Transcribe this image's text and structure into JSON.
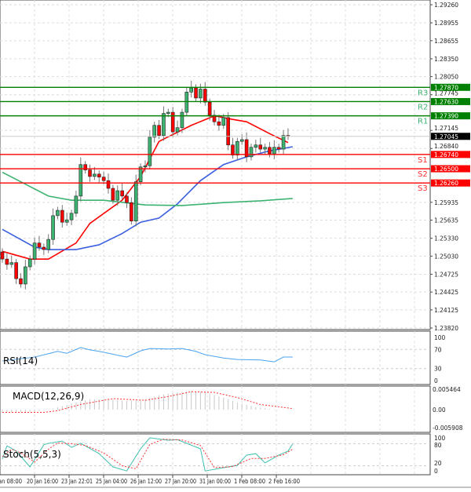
{
  "chart_data": {
    "type": "candlestick",
    "price_axis": {
      "range": [
        1.2382,
        1.2926
      ],
      "ticks": [
        "1.29260",
        "1.28955",
        "1.28655",
        "1.28350",
        "1.28050",
        "1.27745",
        "1.27145",
        "1.26840",
        "1.25935",
        "1.25635",
        "1.25330",
        "1.25030",
        "1.24725",
        "1.24425",
        "1.24125",
        "1.23820"
      ]
    },
    "x_ticks": [
      {
        "label": "Jan 08:00",
        "i": 0
      },
      {
        "label": "20 Jan 16:00",
        "i": 6
      },
      {
        "label": "23 Jan 22:01",
        "i": 13
      },
      {
        "label": "25 Jan 04:00",
        "i": 21
      },
      {
        "label": "26 Jan 12:00",
        "i": 29
      },
      {
        "label": "27 Jan 20:00",
        "i": 37
      },
      {
        "label": "31 Jan 00:00",
        "i": 46
      },
      {
        "label": "1 Feb 08:00",
        "i": 54
      },
      {
        "label": "2 Feb 16:00",
        "i": 61
      }
    ],
    "close": [
      1.2498,
      1.2489,
      1.2492,
      1.2465,
      1.2456,
      1.2485,
      1.2498,
      1.2525,
      1.2518,
      1.2514,
      1.2531,
      1.2571,
      1.258,
      1.256,
      1.2564,
      1.2575,
      1.2604,
      1.2657,
      1.2648,
      1.2637,
      1.2641,
      1.2636,
      1.263,
      1.2617,
      1.2597,
      1.2613,
      1.2604,
      1.2593,
      1.2562,
      1.2628,
      1.2653,
      1.2655,
      1.2703,
      1.2723,
      1.2706,
      1.2743,
      1.2745,
      1.2712,
      1.2719,
      1.2745,
      1.2779,
      1.2786,
      1.2769,
      1.2784,
      1.2762,
      1.274,
      1.2729,
      1.2723,
      1.2736,
      1.269,
      1.2673,
      1.2696,
      1.2699,
      1.267,
      1.2686,
      1.269,
      1.2683,
      1.2686,
      1.2675,
      1.2686,
      1.2683,
      1.2706,
      1.27045
    ],
    "first_open": 1.251,
    "current_price": "1.27045",
    "moving_averages": [
      {
        "color": "#ff0000",
        "points": [
          [
            0,
            1.2511
          ],
          [
            6,
            1.2498
          ],
          [
            10,
            1.2498
          ],
          [
            16,
            1.2525
          ],
          [
            19,
            1.2558
          ],
          [
            26,
            1.2597
          ],
          [
            30,
            1.2637
          ],
          [
            34,
            1.2696
          ],
          [
            41,
            1.2723
          ],
          [
            46,
            1.2739
          ],
          [
            50,
            1.2733
          ],
          [
            53,
            1.2729
          ],
          [
            58,
            1.2709
          ],
          [
            62,
            1.2694
          ]
        ]
      },
      {
        "color": "#3a5fe0",
        "points": [
          [
            0,
            1.2548
          ],
          [
            7,
            1.2518
          ],
          [
            10,
            1.2514
          ],
          [
            16,
            1.2514
          ],
          [
            21,
            1.2522
          ],
          [
            26,
            1.2541
          ],
          [
            30,
            1.256
          ],
          [
            34,
            1.2567
          ],
          [
            38,
            1.2591
          ],
          [
            43,
            1.263
          ],
          [
            48,
            1.2657
          ],
          [
            53,
            1.267
          ],
          [
            58,
            1.268
          ],
          [
            63,
            1.2687
          ]
        ]
      },
      {
        "color": "#3cb371",
        "points": [
          [
            0,
            1.2644
          ],
          [
            5,
            1.2624
          ],
          [
            10,
            1.2604
          ],
          [
            15,
            1.2597
          ],
          [
            22,
            1.2597
          ],
          [
            31,
            1.2589
          ],
          [
            39,
            1.2588
          ],
          [
            48,
            1.2593
          ],
          [
            56,
            1.2596
          ],
          [
            63,
            1.26
          ]
        ]
      }
    ],
    "levels": [
      {
        "name": "R3",
        "value": "1.27870",
        "type": "resistance"
      },
      {
        "name": "R2",
        "value": "1.27630",
        "type": "resistance"
      },
      {
        "name": "R1",
        "value": "1.27390",
        "type": "resistance"
      },
      {
        "name": "S1",
        "value": "1.26740",
        "type": "support"
      },
      {
        "name": "S2",
        "value": "1.26500",
        "type": "support"
      },
      {
        "name": "S3",
        "value": "1.26260",
        "type": "support"
      }
    ],
    "colors": {
      "bull": "#3cb371",
      "bear": "#ff0000",
      "resistance": "#008000",
      "support": "#ff0000",
      "rsi": "#4aa3f0",
      "stoch_main": "#40c0b0",
      "stoch_signal": "#ff3030",
      "macd_hist": "#c8c8c8",
      "macd_signal": "#ff3030"
    },
    "rsi": {
      "label": "RSI(14)",
      "ticks": [
        "100",
        "70",
        "30",
        "0"
      ],
      "points": [
        [
          0,
          46
        ],
        [
          7,
          54
        ],
        [
          10,
          61
        ],
        [
          12,
          66
        ],
        [
          14,
          62
        ],
        [
          17,
          74
        ],
        [
          19,
          69
        ],
        [
          21,
          66
        ],
        [
          27,
          54
        ],
        [
          30,
          67
        ],
        [
          32,
          72
        ],
        [
          36,
          71
        ],
        [
          39,
          72
        ],
        [
          42,
          66
        ],
        [
          44,
          59
        ],
        [
          48,
          52
        ],
        [
          51,
          49
        ],
        [
          56,
          48
        ],
        [
          59,
          44
        ],
        [
          61,
          54
        ],
        [
          63,
          54
        ]
      ]
    },
    "macd": {
      "label": "MACD(12,26,9)",
      "ticks": [
        "0.005464",
        "0.00",
        "-0.005908"
      ],
      "range": [
        -0.005908,
        0.005464
      ],
      "hist_points": [
        [
          0,
          -0.0008
        ],
        [
          7,
          -0.0006
        ],
        [
          10,
          0.0
        ],
        [
          13,
          0.001
        ],
        [
          15,
          0.0018
        ],
        [
          19,
          0.003
        ],
        [
          23,
          0.003
        ],
        [
          27,
          0.0025
        ],
        [
          31,
          0.003
        ],
        [
          34,
          0.0042
        ],
        [
          38,
          0.005
        ],
        [
          41,
          0.0054
        ],
        [
          44,
          0.005
        ],
        [
          48,
          0.0035
        ],
        [
          51,
          0.002
        ],
        [
          55,
          0.0008
        ],
        [
          58,
          0.0002
        ],
        [
          63,
          0.0
        ]
      ],
      "signal_points": [
        [
          0,
          -0.0008
        ],
        [
          9,
          -0.0008
        ],
        [
          12,
          -0.0003
        ],
        [
          17,
          0.0015
        ],
        [
          24,
          0.0032
        ],
        [
          31,
          0.0027
        ],
        [
          36,
          0.0038
        ],
        [
          41,
          0.0052
        ],
        [
          46,
          0.005
        ],
        [
          51,
          0.0035
        ],
        [
          56,
          0.0015
        ],
        [
          63,
          0.0003
        ]
      ]
    },
    "stoch": {
      "label": "Stoch(5,5,3)",
      "ticks": [
        "100",
        "80",
        "20",
        "0"
      ],
      "main": [
        [
          0,
          38
        ],
        [
          1,
          74
        ],
        [
          3,
          60
        ],
        [
          6,
          17
        ],
        [
          9,
          77
        ],
        [
          10,
          81
        ],
        [
          13,
          87
        ],
        [
          15,
          70
        ],
        [
          17,
          81
        ],
        [
          21,
          53
        ],
        [
          24,
          17
        ],
        [
          27,
          6
        ],
        [
          30,
          66
        ],
        [
          32,
          96
        ],
        [
          36,
          89
        ],
        [
          38,
          91
        ],
        [
          43,
          66
        ],
        [
          44,
          6
        ],
        [
          48,
          15
        ],
        [
          51,
          21
        ],
        [
          53,
          49
        ],
        [
          55,
          53
        ],
        [
          57,
          28
        ],
        [
          60,
          49
        ],
        [
          62,
          60
        ],
        [
          63,
          79
        ]
      ],
      "signal": [
        [
          0,
          45
        ],
        [
          2,
          65
        ],
        [
          4,
          55
        ],
        [
          7,
          30
        ],
        [
          10,
          65
        ],
        [
          12,
          82
        ],
        [
          15,
          80
        ],
        [
          18,
          75
        ],
        [
          22,
          55
        ],
        [
          26,
          20
        ],
        [
          29,
          12
        ],
        [
          32,
          78
        ],
        [
          35,
          92
        ],
        [
          39,
          90
        ],
        [
          43,
          75
        ],
        [
          46,
          15
        ],
        [
          50,
          18
        ],
        [
          54,
          40
        ],
        [
          57,
          40
        ],
        [
          61,
          50
        ],
        [
          63,
          65
        ]
      ]
    }
  }
}
